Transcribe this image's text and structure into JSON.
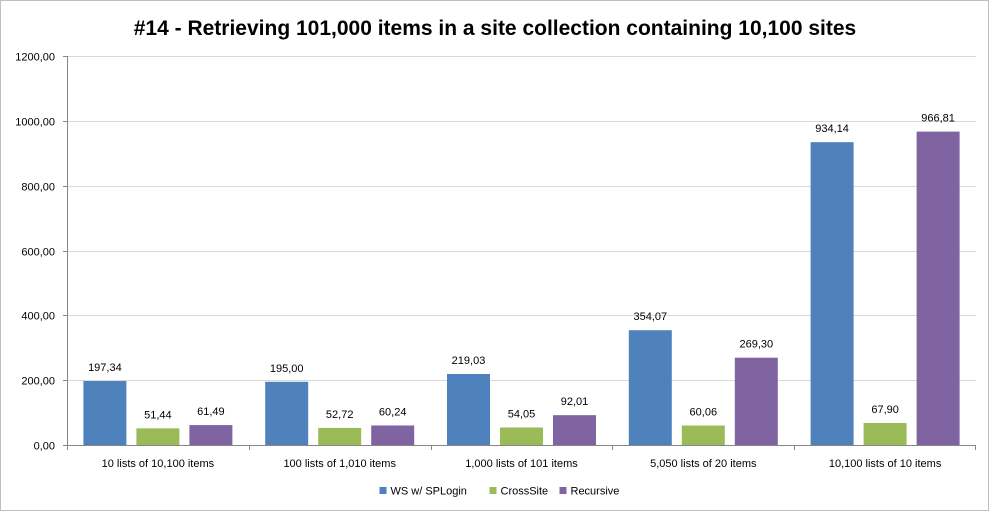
{
  "chart_data": {
    "type": "bar",
    "title": "#14 - Retrieving 101,000 items in a site collection containing 10,100 sites",
    "xlabel": "",
    "ylabel": "",
    "ylim": [
      0,
      1200
    ],
    "ytick_step": 200,
    "ytick_labels": [
      "0,00",
      "200,00",
      "400,00",
      "600,00",
      "800,00",
      "1000,00",
      "1200,00"
    ],
    "grid": true,
    "legend_position": "bottom",
    "categories": [
      "10 lists of 10,100 items",
      "100 lists of 1,010 items",
      "1,000 lists of 101 items",
      "5,050 lists of 20 items",
      "10,100 lists of 10 items"
    ],
    "series": [
      {
        "name": "WS w/ SPLogin",
        "color": "#4f81bd",
        "values": [
          197.34,
          195.0,
          219.03,
          354.07,
          934.14
        ],
        "labels": [
          "197,34",
          "195,00",
          "219,03",
          "354,07",
          "934,14"
        ]
      },
      {
        "name": "CrossSite",
        "color": "#9bbb59",
        "values": [
          51.44,
          52.72,
          54.05,
          60.06,
          67.9
        ],
        "labels": [
          "51,44",
          "52,72",
          "54,05",
          "60,06",
          "67,90"
        ]
      },
      {
        "name": "Recursive",
        "color": "#8064a2",
        "values": [
          61.49,
          60.24,
          92.01,
          269.3,
          966.81
        ],
        "labels": [
          "61,49",
          "60,24",
          "92,01",
          "269,30",
          "966,81"
        ]
      }
    ]
  }
}
